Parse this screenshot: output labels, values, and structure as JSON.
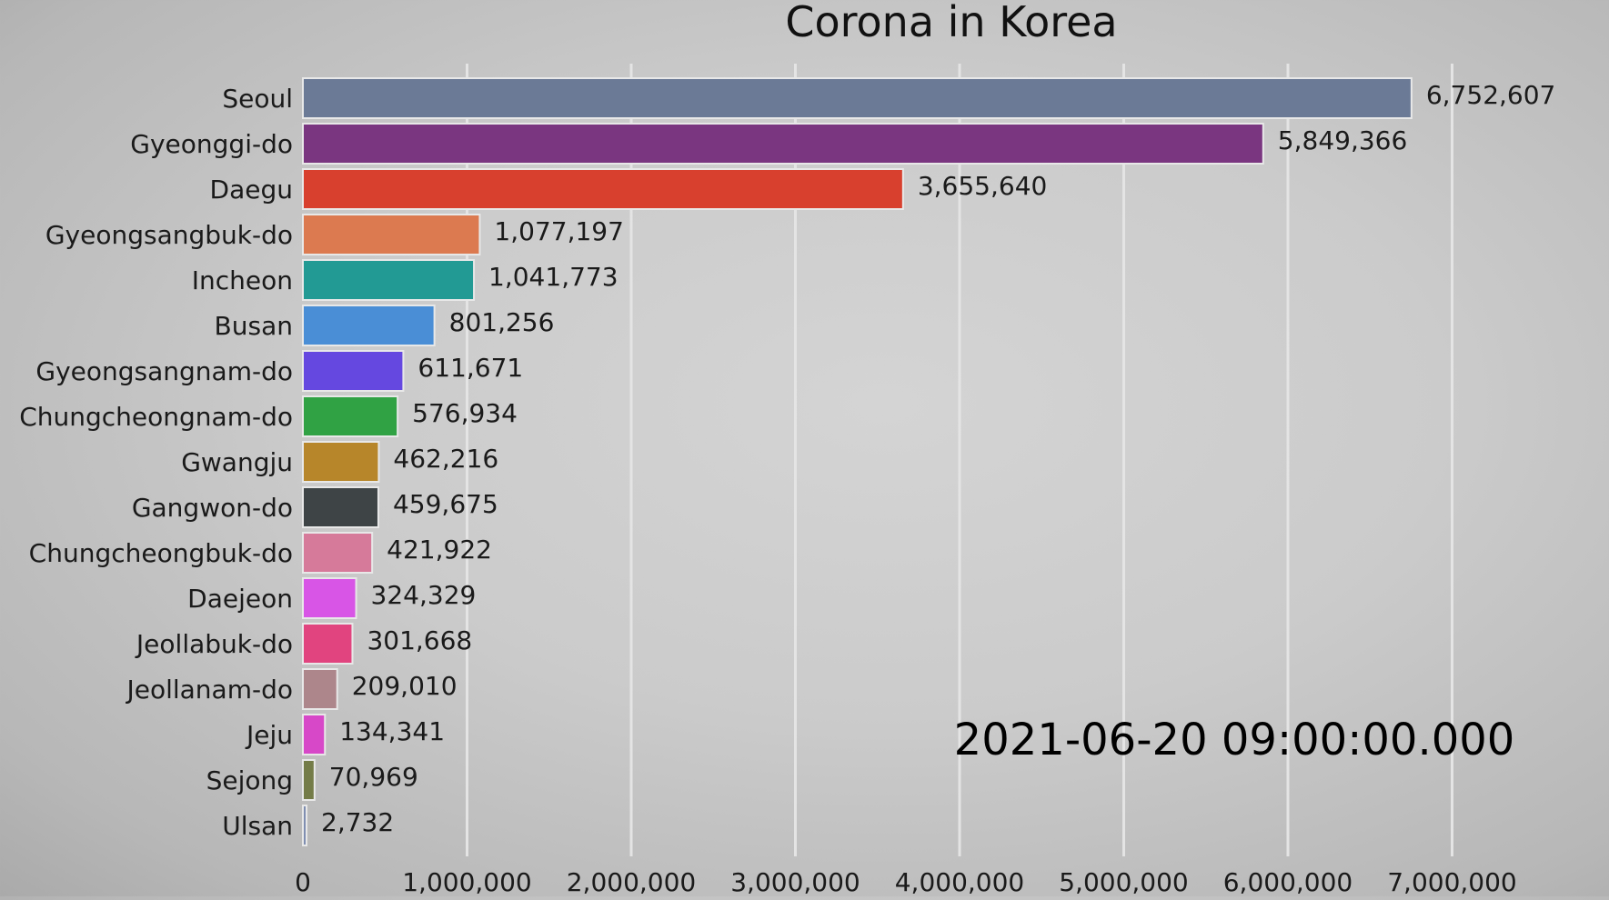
{
  "chart_data": {
    "type": "bar",
    "orientation": "horizontal",
    "title": "Corona in Korea",
    "timestamp": "2021-06-20 09:00:00.000",
    "xlim": [
      0,
      7800000
    ],
    "x_ticks": [
      0,
      1000000,
      2000000,
      3000000,
      4000000,
      5000000,
      6000000,
      7000000
    ],
    "x_tick_labels": [
      "0",
      "1,000,000",
      "2,000,000",
      "3,000,000",
      "4,000,000",
      "5,000,000",
      "6,000,000",
      "7,000,000"
    ],
    "grid": true,
    "categories": [
      "Seoul",
      "Gyeonggi-do",
      "Daegu",
      "Gyeongsangbuk-do",
      "Incheon",
      "Busan",
      "Gyeongsangnam-do",
      "Chungcheongnam-do",
      "Gwangju",
      "Gangwon-do",
      "Chungcheongbuk-do",
      "Daejeon",
      "Jeollabuk-do",
      "Jeollanam-do",
      "Jeju",
      "Sejong",
      "Ulsan"
    ],
    "values": [
      6752607,
      5849366,
      3655640,
      1077197,
      1041773,
      801256,
      611671,
      576934,
      462216,
      459675,
      421922,
      324329,
      301668,
      209010,
      134341,
      70969,
      2732
    ],
    "value_labels": [
      "6,752,607",
      "5,849,366",
      "3,655,640",
      "1,077,197",
      "1,041,773",
      "801,256",
      "611,671",
      "576,934",
      "462,216",
      "459,675",
      "421,922",
      "324,329",
      "301,668",
      "209,010",
      "134,341",
      "70,969",
      "2,732"
    ],
    "colors": [
      "#6b7a96",
      "#7a3680",
      "#d8402e",
      "#dc7a50",
      "#229a94",
      "#4a8ed6",
      "#6548e0",
      "#30a244",
      "#b7862a",
      "#3e4446",
      "#d67a9a",
      "#d855e6",
      "#e1447f",
      "#ad868b",
      "#d748c8",
      "#747c48",
      "#7f8eb1"
    ],
    "grid_color": "#e4e4e4"
  }
}
